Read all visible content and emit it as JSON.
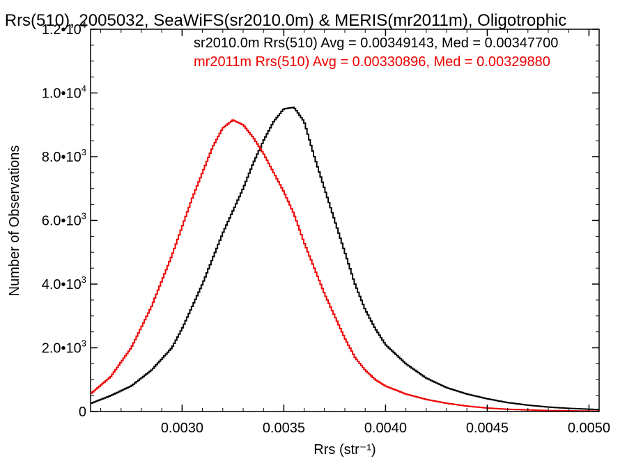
{
  "chart_data": {
    "type": "line",
    "title": "Rrs(510), 2005032, SeaWiFS(sr2010.0m) & MERIS(mr2011m), Oligotrophic",
    "xlabel": "Rrs (str⁻¹)",
    "ylabel": "Number of Observations",
    "xlim": [
      0.00255,
      0.00505
    ],
    "ylim": [
      0,
      12000
    ],
    "grid": false,
    "legend_position": "top-right",
    "x_ticks": [
      {
        "value": 0.003,
        "label": "0.0030"
      },
      {
        "value": 0.0035,
        "label": "0.0035"
      },
      {
        "value": 0.004,
        "label": "0.0040"
      },
      {
        "value": 0.0045,
        "label": "0.0045"
      },
      {
        "value": 0.005,
        "label": "0.0050"
      }
    ],
    "y_ticks": [
      {
        "value": 0,
        "label": "0"
      },
      {
        "value": 2000,
        "label": "2.0•10",
        "exp": "3"
      },
      {
        "value": 4000,
        "label": "4.0•10",
        "exp": "3"
      },
      {
        "value": 6000,
        "label": "6.0•10",
        "exp": "3"
      },
      {
        "value": 8000,
        "label": "8.0•10",
        "exp": "3"
      },
      {
        "value": 10000,
        "label": "1.0•10",
        "exp": "4"
      },
      {
        "value": 12000,
        "label": "1.2•10",
        "exp": "4"
      }
    ],
    "series": [
      {
        "name": "sr2010.0m Rrs(510)",
        "legend": "sr2010.0m Rrs(510) Avg = 0.00349143, Med = 0.00347700",
        "color": "#000000",
        "x": [
          0.00255,
          0.00265,
          0.00275,
          0.00285,
          0.00295,
          0.003,
          0.00305,
          0.0031,
          0.00315,
          0.0032,
          0.00325,
          0.0033,
          0.00335,
          0.0034,
          0.00345,
          0.0035,
          0.00355,
          0.0036,
          0.00365,
          0.0037,
          0.00375,
          0.0038,
          0.00385,
          0.0039,
          0.00395,
          0.004,
          0.0041,
          0.0042,
          0.0043,
          0.0044,
          0.0045,
          0.0046,
          0.0047,
          0.0048,
          0.0049,
          0.00505
        ],
        "y": [
          250,
          500,
          800,
          1300,
          2000,
          2600,
          3300,
          4000,
          4800,
          5600,
          6300,
          7000,
          7800,
          8500,
          9100,
          9500,
          9550,
          9100,
          8000,
          7000,
          6000,
          5000,
          4000,
          3200,
          2600,
          2100,
          1500,
          1050,
          750,
          550,
          400,
          280,
          200,
          140,
          100,
          60
        ]
      },
      {
        "name": "mr2011m Rrs(510)",
        "legend": "mr2011m Rrs(510) Avg = 0.00330896, Med = 0.00329880",
        "color": "#ee0000",
        "x": [
          0.00255,
          0.00265,
          0.00275,
          0.00285,
          0.0029,
          0.00295,
          0.003,
          0.00305,
          0.0031,
          0.00315,
          0.0032,
          0.00325,
          0.0033,
          0.00335,
          0.0034,
          0.00345,
          0.0035,
          0.00355,
          0.0036,
          0.00365,
          0.0037,
          0.00375,
          0.0038,
          0.00385,
          0.0039,
          0.00395,
          0.004,
          0.0041,
          0.0042,
          0.0043,
          0.0044,
          0.0045,
          0.0046,
          0.0048,
          0.00505
        ],
        "y": [
          550,
          1100,
          2000,
          3300,
          4100,
          4900,
          5800,
          6700,
          7500,
          8300,
          8900,
          9150,
          9000,
          8600,
          8100,
          7500,
          6900,
          6200,
          5300,
          4500,
          3700,
          3000,
          2300,
          1700,
          1300,
          1000,
          800,
          550,
          380,
          260,
          170,
          110,
          70,
          30,
          10
        ]
      }
    ]
  }
}
